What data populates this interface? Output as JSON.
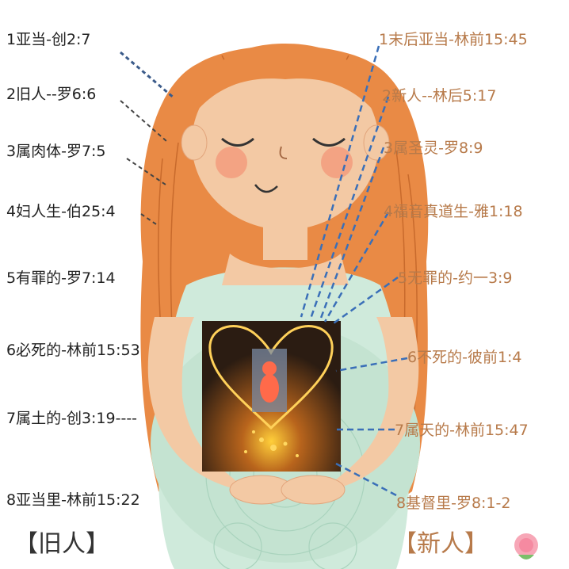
{
  "left_labels": [
    "1亚当-创2:7",
    "2旧人--罗6:6",
    "3属肉体-罗7:5",
    "4妇人生-伯25:4",
    "5有罪的-罗7:14",
    "6必死的-林前15:53",
    "7属土的-创3:19----",
    "8亚当里-林前15:22"
  ],
  "right_labels": [
    "1末后亚当-林前15:45",
    "2新人--林后5:17",
    "3属圣灵-罗8:9",
    "4福音真道生-雅1:18",
    "5无罪的-约一3:9",
    "6不死的-彼前1:4",
    "7属天的-林前15:47",
    "8基督里-罗8:1-2"
  ],
  "footer": {
    "left": "【旧人】",
    "right": "【新人】"
  },
  "colors": {
    "hair": "#e98a45",
    "skin": "#f3c9a4",
    "dress": "#cfeadb",
    "right_text": "#b77a4a",
    "left_text": "#222222",
    "right_line": "#3a6fb8"
  }
}
